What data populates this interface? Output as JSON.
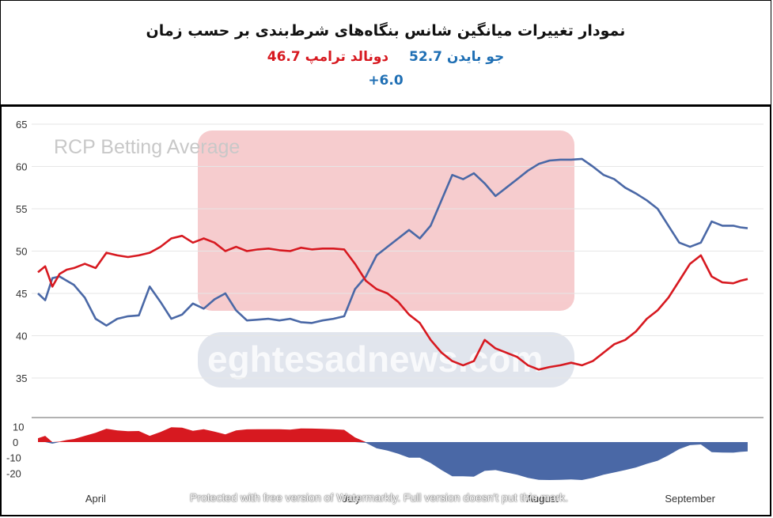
{
  "header": {
    "title": "نمودار تغییرات میانگین شانس بنگاه‌های شرط‌بندی بر حسب زمان",
    "biden_label": "جو بایدن 52.7",
    "trump_label": "دونالد ترامپ 46.7",
    "spread_label": "+6.0"
  },
  "watermarks": {
    "chart_label": "RCP Betting Average",
    "site_url": "eghtesadnews.com",
    "tool_notice": "Protected with free version of Watermarkly. Full version doesn't put this mark."
  },
  "colors": {
    "biden": "#4a68a6",
    "trump": "#d71920",
    "header_biden": "#1f6fb4",
    "header_trump": "#d71920"
  },
  "chart_data": {
    "type": "line",
    "title": "RCP Betting Average",
    "x_tick_labels": [
      "April",
      "July",
      "August",
      "September"
    ],
    "y_ticks": [
      35,
      40,
      45,
      50,
      55,
      60,
      65
    ],
    "ylim": [
      33,
      66
    ],
    "x_note": "x = days from start of window (mid March to late September)",
    "x": [
      0,
      2,
      4,
      6,
      8,
      10,
      13,
      16,
      19,
      22,
      25,
      28,
      31,
      34,
      37,
      40,
      43,
      46,
      49,
      52,
      55,
      58,
      61,
      64,
      67,
      70,
      73,
      76,
      79,
      82,
      85,
      88,
      91,
      94,
      97,
      100,
      103,
      106,
      109,
      112,
      115,
      118,
      121,
      124,
      127,
      130,
      133,
      136,
      139,
      142,
      145,
      148,
      151,
      154,
      157,
      160,
      163,
      166,
      169,
      172,
      175,
      178,
      181,
      184,
      187,
      190,
      193,
      195,
      197
    ],
    "series": [
      {
        "name": "جو بایدن",
        "color": "#4a68a6",
        "values": [
          45.0,
          44.2,
          46.8,
          47.0,
          46.5,
          46.0,
          44.5,
          42.0,
          41.2,
          42.0,
          42.3,
          42.4,
          45.8,
          44.0,
          42.0,
          42.5,
          43.8,
          43.2,
          44.3,
          45.0,
          43.0,
          41.8,
          41.9,
          42.0,
          41.8,
          42.0,
          41.6,
          41.5,
          41.8,
          42.0,
          42.3,
          45.5,
          47.0,
          49.5,
          50.5,
          51.5,
          52.5,
          51.5,
          53.0,
          56.0,
          59.0,
          58.5,
          59.2,
          58.0,
          56.5,
          57.5,
          58.5,
          59.5,
          60.3,
          60.7,
          60.8,
          60.8,
          60.9,
          60.0,
          59.0,
          58.5,
          57.5,
          56.8,
          56.0,
          55.0,
          53.0,
          51.0,
          50.5,
          51.0,
          53.5,
          53.0,
          53.0,
          52.8,
          52.7
        ]
      },
      {
        "name": "دونالد ترامپ",
        "color": "#d71920",
        "values": [
          47.5,
          48.2,
          45.8,
          47.3,
          47.8,
          48.0,
          48.5,
          48.0,
          49.8,
          49.5,
          49.3,
          49.5,
          49.8,
          50.5,
          51.5,
          51.8,
          51.0,
          51.5,
          51.0,
          50.0,
          50.5,
          50.0,
          50.2,
          50.3,
          50.1,
          50.0,
          50.4,
          50.2,
          50.3,
          50.3,
          50.2,
          48.5,
          46.5,
          45.5,
          45.0,
          44.0,
          42.5,
          41.5,
          39.5,
          38.0,
          37.0,
          36.5,
          37.0,
          39.5,
          38.5,
          38.0,
          37.5,
          36.5,
          36.0,
          36.3,
          36.5,
          36.8,
          36.5,
          37.0,
          38.0,
          39.0,
          39.5,
          40.5,
          42.0,
          43.0,
          44.5,
          46.5,
          48.5,
          49.5,
          47.0,
          46.3,
          46.2,
          46.5,
          46.7
        ]
      }
    ],
    "spread_panel": {
      "y_ticks": [
        10,
        0,
        -10,
        -20
      ],
      "ylim": [
        -26,
        14
      ],
      "values_trump_minus_biden": [
        2.5,
        4.0,
        -1.0,
        0.3,
        1.3,
        2.0,
        4.0,
        6.0,
        8.6,
        7.5,
        7.0,
        7.1,
        4.0,
        6.5,
        9.5,
        9.3,
        7.2,
        8.3,
        6.7,
        5.0,
        7.5,
        8.2,
        8.3,
        8.3,
        8.3,
        8.0,
        8.8,
        8.7,
        8.5,
        8.3,
        7.9,
        3.0,
        -0.5,
        -4.0,
        -5.5,
        -7.5,
        -10.0,
        -10.0,
        -13.5,
        -18.0,
        -22.0,
        -22.0,
        -22.2,
        -18.5,
        -18.0,
        -19.5,
        -21.0,
        -23.0,
        -24.3,
        -24.4,
        -24.3,
        -24.0,
        -24.4,
        -23.0,
        -21.0,
        -19.5,
        -18.0,
        -16.3,
        -14.0,
        -12.0,
        -8.5,
        -4.5,
        -2.0,
        -1.5,
        -6.5,
        -6.7,
        -6.8,
        -6.3,
        -6.0
      ]
    }
  }
}
